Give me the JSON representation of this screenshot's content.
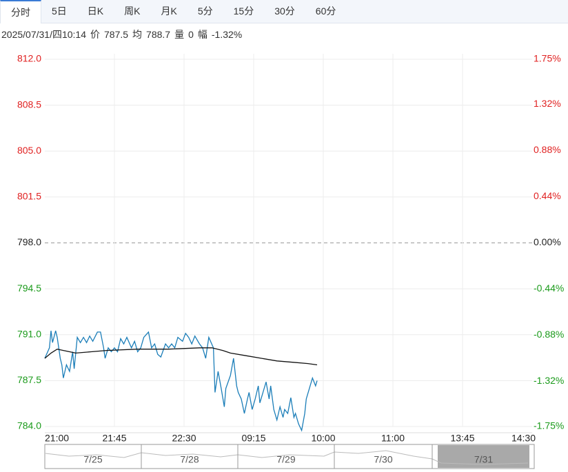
{
  "tabs": [
    "分时",
    "5日",
    "日K",
    "周K",
    "月K",
    "5分",
    "15分",
    "30分",
    "60分"
  ],
  "info": {
    "date": "2025/07/31/四10:14",
    "items": [
      {
        "label": "价",
        "value": 787.5
      },
      {
        "label": "均",
        "value": 788.7
      },
      {
        "label": "量",
        "value": 0
      },
      {
        "label": "幅",
        "value": {
          "value": -1.32,
          "label": "-1.32%"
        }
      }
    ]
  },
  "chart_data": {
    "type": "line",
    "base": 798,
    "grid": true,
    "xlim": [
      0,
      315
    ],
    "xticks": [
      {
        "value": 0,
        "label": "21:00"
      },
      {
        "value": 45,
        "label": "21:45"
      },
      {
        "value": 90,
        "label": "22:30"
      },
      {
        "value": 135,
        "label": "09:15"
      },
      {
        "value": 180,
        "label": "10:00"
      },
      {
        "value": 225,
        "label": "11:00"
      },
      {
        "value": 270,
        "label": "13:45"
      },
      {
        "value": 315,
        "label": "14:30"
      }
    ],
    "ylim": [
      784,
      812
    ],
    "yticks": [
      {
        "value": 784,
        "label": "784.0"
      },
      {
        "value": 787.5,
        "label": "787.5"
      },
      {
        "value": 791,
        "label": "791.0"
      },
      {
        "value": 794.5,
        "label": "794.5"
      },
      {
        "value": 798,
        "label": "798.0"
      },
      {
        "value": 801.5,
        "label": "801.5"
      },
      {
        "value": 805,
        "label": "805.0"
      },
      {
        "value": 808.5,
        "label": "808.5"
      },
      {
        "value": 812,
        "label": "812.0"
      }
    ],
    "y2lim": [
      -1.75,
      1.75
    ],
    "y2ticks": [
      {
        "value": -1.75,
        "label": "-1.75%"
      },
      {
        "value": -1.32,
        "label": "-1.32%"
      },
      {
        "value": -0.88,
        "label": "-0.88%"
      },
      {
        "value": -0.44,
        "label": "-0.44%"
      },
      {
        "value": 0,
        "label": "0.00%"
      },
      {
        "value": 0.44,
        "label": "0.44%"
      },
      {
        "value": 0.88,
        "label": "0.88%"
      },
      {
        "value": 1.32,
        "label": "1.32%"
      },
      {
        "value": 1.75,
        "label": "1.75%"
      }
    ],
    "series": [
      {
        "color": "#1a7db8",
        "x": [
          0,
          3,
          4,
          5,
          7,
          8,
          10,
          11,
          12,
          14,
          16,
          18,
          19,
          21,
          23,
          25,
          27,
          29,
          31,
          34,
          36,
          38,
          39,
          41,
          43,
          45,
          47,
          49,
          51,
          53,
          56,
          58,
          60,
          62,
          64,
          67,
          69,
          71,
          73,
          75,
          78,
          80,
          82,
          84,
          86,
          89,
          91,
          93,
          95,
          97,
          100,
          102,
          104,
          106,
          109,
          110,
          112,
          114,
          116,
          117,
          120,
          122,
          124,
          125,
          127,
          129,
          131,
          132,
          134,
          136,
          138,
          139,
          141,
          143,
          145,
          146,
          148,
          150,
          152,
          154,
          155,
          157,
          159,
          161,
          162,
          164,
          166,
          168,
          169,
          171,
          173,
          175,
          176
        ],
        "values": [
          789.2,
          790.0,
          791.3,
          790.4,
          791.3,
          790.8,
          789.2,
          788.7,
          787.7,
          788.7,
          788.2,
          789.7,
          788.4,
          790.8,
          790.4,
          790.8,
          790.4,
          790.9,
          790.5,
          791.2,
          791.2,
          790.0,
          789.2,
          790.0,
          789.7,
          790.0,
          789.7,
          790.7,
          790.3,
          790.8,
          790.0,
          790.5,
          789.7,
          790.0,
          790.8,
          791.2,
          790.0,
          790.3,
          789.5,
          789.3,
          790.3,
          790.0,
          790.3,
          790.0,
          790.8,
          790.5,
          791.1,
          790.8,
          790.3,
          790.9,
          790.3,
          790.0,
          789.2,
          790.8,
          790.0,
          786.6,
          788.2,
          786.9,
          785.5,
          786.9,
          787.9,
          789.2,
          787.1,
          786.6,
          786.1,
          785.0,
          786.1,
          786.6,
          785.3,
          786.1,
          787.1,
          785.8,
          786.6,
          787.4,
          786.1,
          787.1,
          785.3,
          784.5,
          785.5,
          784.7,
          785.3,
          785.0,
          786.2,
          784.7,
          785.0,
          784.2,
          783.7,
          785.0,
          786.1,
          786.9,
          787.7,
          787.1,
          787.5
        ]
      },
      {
        "color": "#111111",
        "x": [
          0,
          4,
          8,
          12,
          20,
          30,
          40,
          60,
          80,
          100,
          108,
          115,
          120,
          130,
          140,
          150,
          160,
          170,
          176
        ],
        "values": [
          789.2,
          789.6,
          789.9,
          789.8,
          789.6,
          789.7,
          789.8,
          789.9,
          789.9,
          790.0,
          790.0,
          789.8,
          789.6,
          789.4,
          789.2,
          789.0,
          788.9,
          788.8,
          788.7
        ]
      }
    ]
  },
  "navigator": {
    "dates": [
      "7/25",
      "7/28",
      "7/29",
      "7/30",
      "7/31"
    ]
  }
}
